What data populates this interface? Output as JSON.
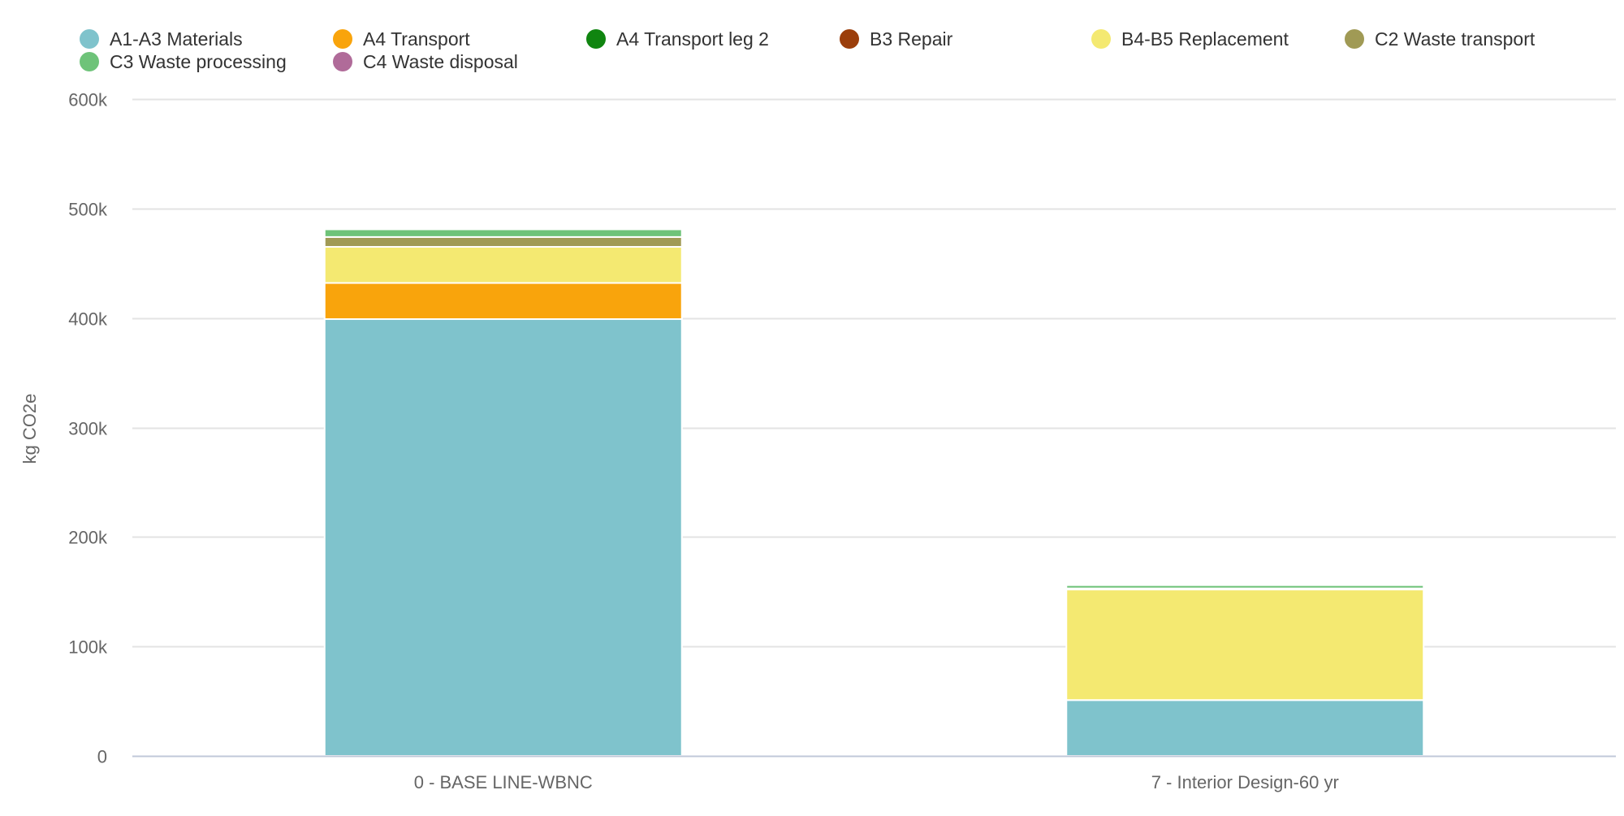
{
  "chart_data": {
    "type": "bar",
    "stacked": true,
    "categories": [
      "0 - BASE LINE-WBNC",
      "7 - Interior Design-60 yr"
    ],
    "ylabel": "kg CO2e",
    "xlabel": "",
    "ylim": [
      0,
      600000
    ],
    "yticks": [
      0,
      100000,
      200000,
      300000,
      400000,
      500000,
      600000
    ],
    "ytick_labels": [
      "0",
      "100k",
      "200k",
      "300k",
      "400k",
      "500k",
      "600k"
    ],
    "grid": true,
    "legend_position": "top",
    "series": [
      {
        "name": "A1-A3 Materials",
        "color": "#7fc3cc",
        "values": [
          399000,
          51000
        ]
      },
      {
        "name": "A4 Transport",
        "color": "#f9a40c",
        "values": [
          33000,
          0
        ]
      },
      {
        "name": "A4 Transport leg 2",
        "color": "#108510",
        "values": [
          0,
          0
        ]
      },
      {
        "name": "B3 Repair",
        "color": "#9b3e0b",
        "values": [
          0,
          0
        ]
      },
      {
        "name": "B4-B5 Replacement",
        "color": "#f4e971",
        "values": [
          33000,
          101000
        ]
      },
      {
        "name": "C2 Waste transport",
        "color": "#a09a55",
        "values": [
          9000,
          1000
        ]
      },
      {
        "name": "C3 Waste processing",
        "color": "#6ec379",
        "values": [
          7000,
          3000
        ]
      },
      {
        "name": "C4 Waste disposal",
        "color": "#b06b99",
        "values": [
          0,
          0
        ]
      }
    ]
  }
}
